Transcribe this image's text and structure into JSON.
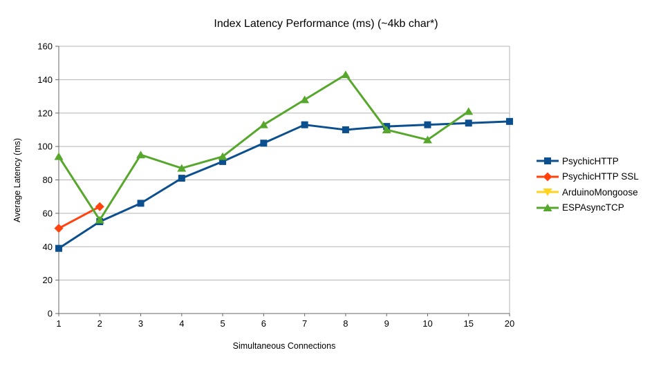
{
  "chart_data": {
    "type": "line",
    "title": "Index Latency Performance (ms) (~4kb char*)",
    "xlabel": "Simultaneous Connections",
    "ylabel": "Average Latency (ms)",
    "categories": [
      "1",
      "2",
      "3",
      "4",
      "5",
      "6",
      "7",
      "8",
      "9",
      "10",
      "15",
      "20"
    ],
    "ylim": [
      0,
      160
    ],
    "ytick_step": 20,
    "ytick_labels": [
      "0",
      "20",
      "40",
      "60",
      "80",
      "100",
      "120",
      "140",
      "160"
    ],
    "grid": "horizontal",
    "legend_position": "right",
    "colors": {
      "grid": "#b3b3b3",
      "axis": "#666666",
      "text": "#000000",
      "background": "#ffffff"
    },
    "series": [
      {
        "name": "PsychicHTTP",
        "color": "#0b4f8f",
        "marker": "square",
        "x": [
          "1",
          "2",
          "3",
          "4",
          "5",
          "6",
          "7",
          "8",
          "9",
          "10",
          "15",
          "20"
        ],
        "values": [
          39,
          55,
          66,
          81,
          91,
          102,
          113,
          110,
          112,
          113,
          114,
          115
        ]
      },
      {
        "name": "PsychicHTTP SSL",
        "color": "#ff420e",
        "marker": "diamond",
        "x": [
          "1",
          "2"
        ],
        "values": [
          51,
          64
        ]
      },
      {
        "name": "ArduinoMongoose",
        "color": "#ffd320",
        "marker": "triangle-down",
        "x": [],
        "values": []
      },
      {
        "name": "ESPAsyncTCP",
        "color": "#56a72c",
        "marker": "triangle-up",
        "x": [
          "1",
          "2",
          "3",
          "4",
          "5",
          "6",
          "7",
          "8",
          "9",
          "10",
          "15"
        ],
        "values": [
          94,
          56,
          95,
          87,
          94,
          113,
          128,
          143,
          110,
          104,
          121
        ]
      }
    ]
  }
}
